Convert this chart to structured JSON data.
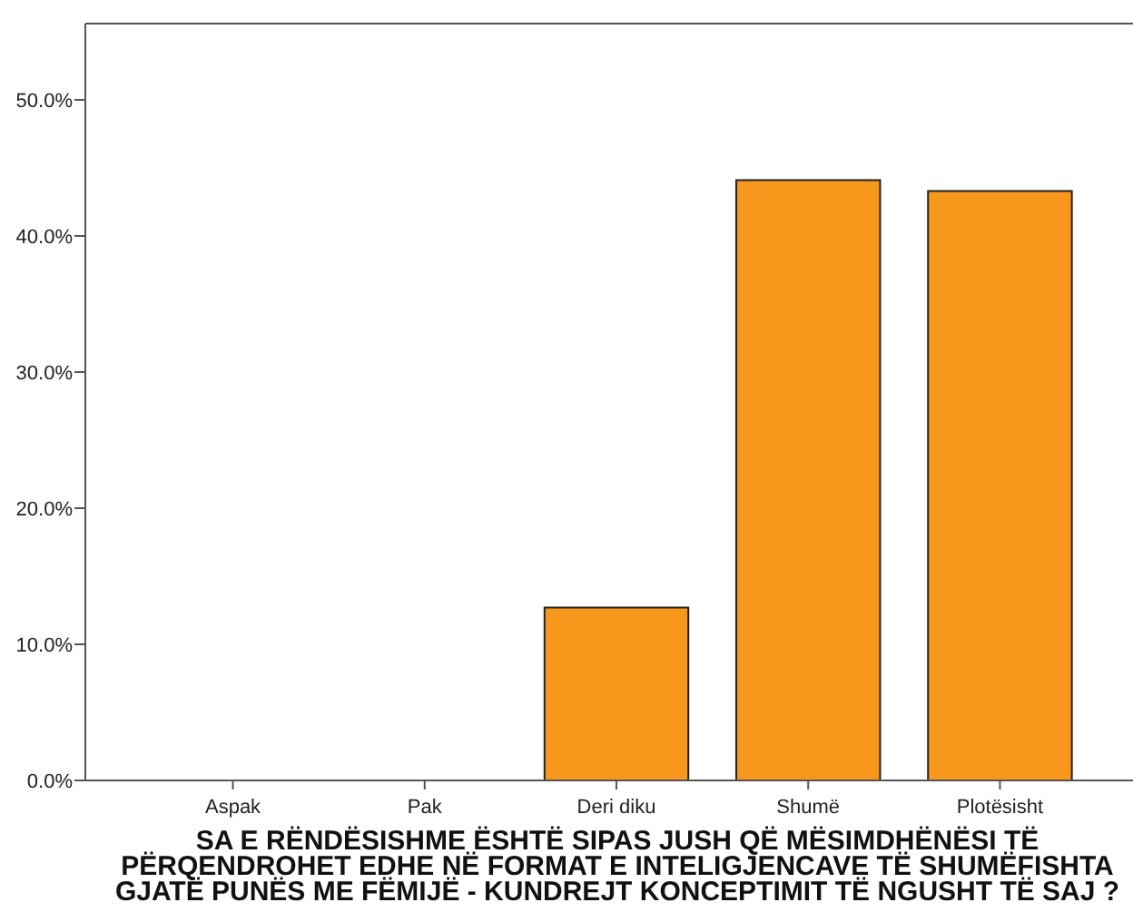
{
  "chart_data": {
    "type": "bar",
    "xlabel": "SA E RËNDËSISHME ËSHTË SIPAS JUSH QË MËSIMDHËNËSI TË PËRQENDROHET EDHE NË FORMAT E INTELIGJENCAVE TË SHUMËFISHTA GJATË PUNËS ME FËMIJË - KUNDREJT KONCEPTIMIT TË NGUSHT TË SAJ ?",
    "categories": [
      "Aspak",
      "Pak",
      "Deri diku",
      "Shumë",
      "Plotësisht"
    ],
    "values": [
      0,
      0,
      12.7,
      44.1,
      43.3
    ],
    "color": "#f7981d",
    "ylim": [
      0,
      55.6
    ],
    "yticks": [
      {
        "value": 0,
        "label": "0.0%"
      },
      {
        "value": 10,
        "label": "10.0%"
      },
      {
        "value": 20,
        "label": "20.0%"
      },
      {
        "value": 30,
        "label": "30.0%"
      },
      {
        "value": 40,
        "label": "40.0%"
      },
      {
        "value": 50,
        "label": "50.0%"
      }
    ],
    "grid": false
  }
}
